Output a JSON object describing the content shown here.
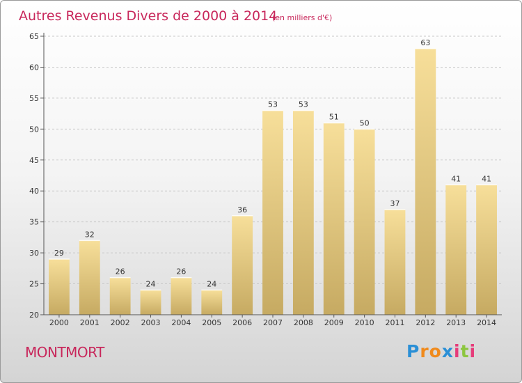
{
  "chart_data": {
    "type": "bar",
    "title": "Autres Revenus Divers de 2000 à 2014",
    "subtitle": "(en milliers d'€)",
    "categories": [
      "2000",
      "2001",
      "2002",
      "2003",
      "2004",
      "2005",
      "2006",
      "2007",
      "2008",
      "2009",
      "2010",
      "2011",
      "2012",
      "2013",
      "2014"
    ],
    "values": [
      29,
      32,
      26,
      24,
      26,
      24,
      36,
      53,
      53,
      51,
      50,
      37,
      63,
      41,
      41
    ],
    "xlabel": "",
    "ylabel": "",
    "ylim": [
      20,
      65
    ],
    "yticks": [
      20,
      25,
      30,
      35,
      40,
      45,
      50,
      55,
      60,
      65
    ],
    "grid": "horizontal dashed",
    "bar_color": "#e8c97a"
  },
  "footer": {
    "location": "MONTMORT",
    "brand_letters": [
      "P",
      "r",
      "o",
      "x",
      "i",
      "t",
      "i"
    ],
    "brand_colors": [
      "#2a8fd6",
      "#f08a1c",
      "#f08a1c",
      "#2a8fd6",
      "#e63c7a",
      "#8cc63f",
      "#e63c7a"
    ]
  }
}
